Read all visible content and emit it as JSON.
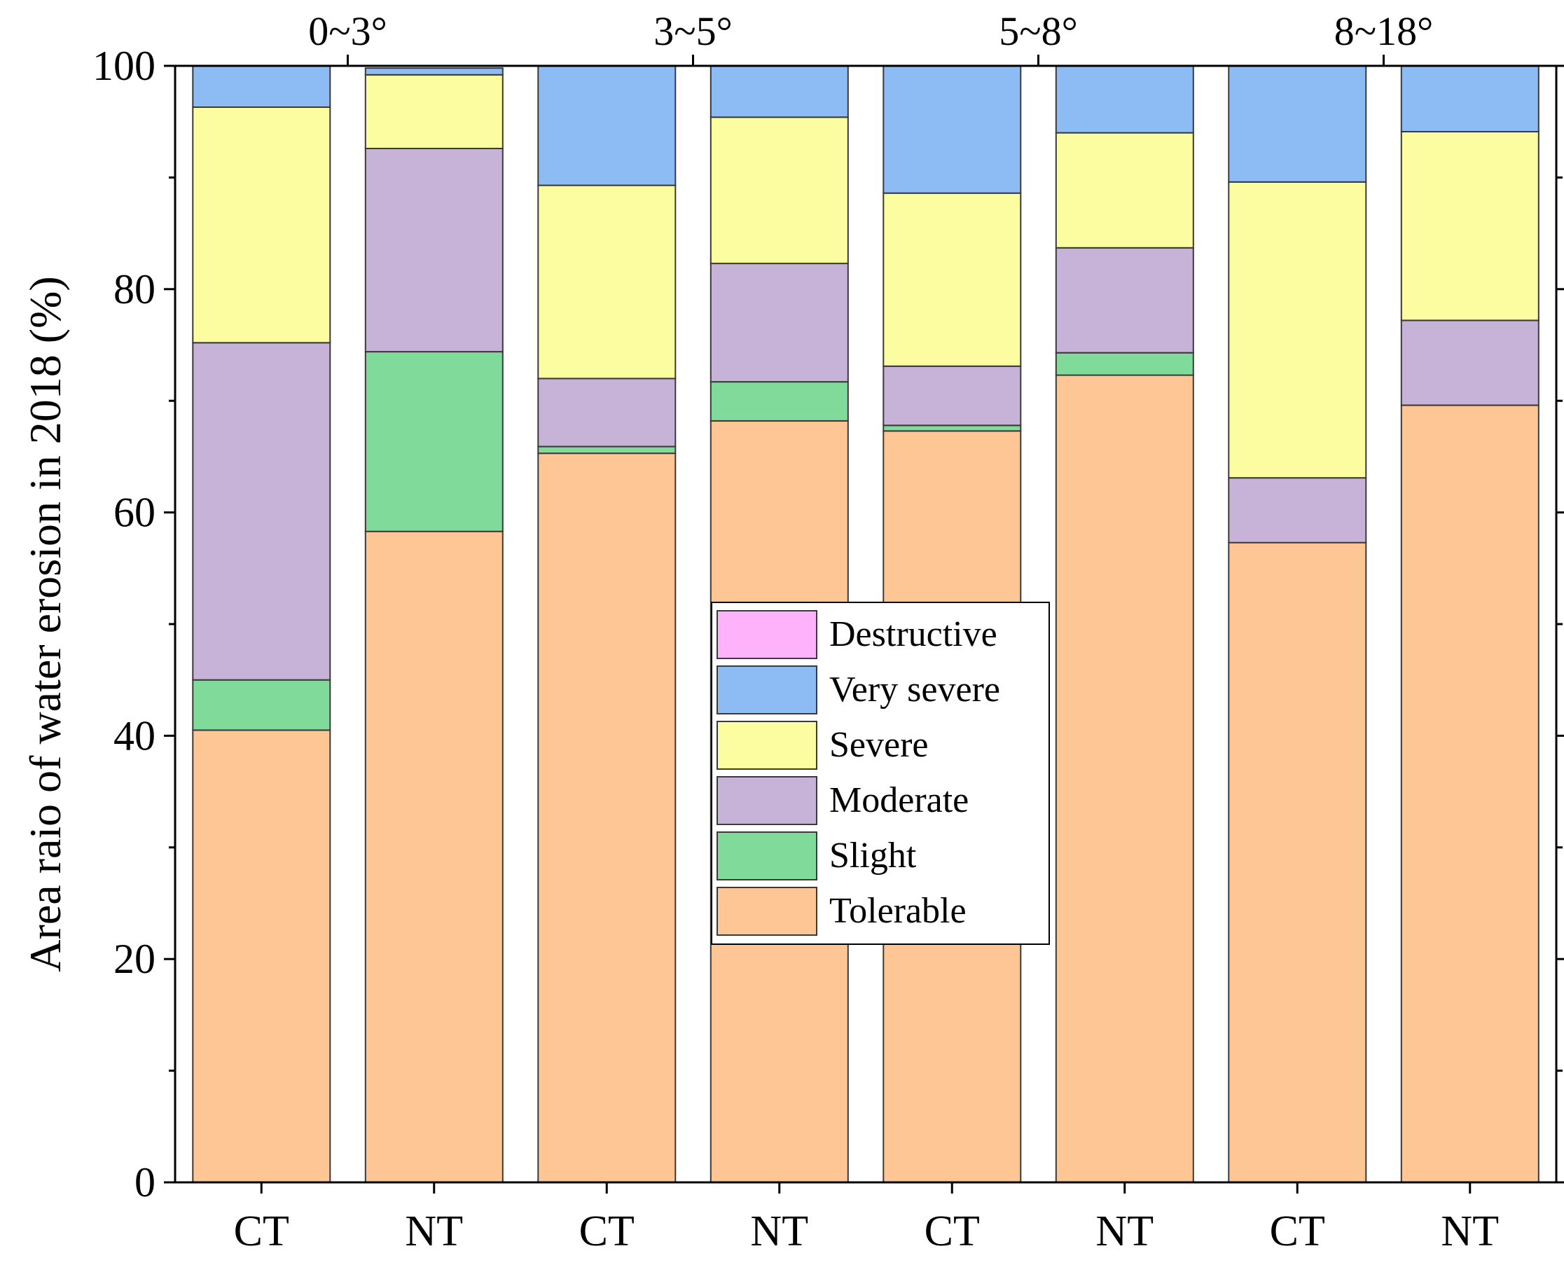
{
  "chart_data": {
    "type": "bar",
    "stacked": true,
    "title": "",
    "xlabel": "",
    "ylabel": "Area raio of water erosion in 2018 (%)",
    "ylim": [
      0,
      100
    ],
    "yticks": [
      0,
      20,
      40,
      60,
      80,
      100
    ],
    "categories": [
      "CT",
      "NT",
      "CT",
      "NT",
      "CT",
      "NT",
      "CT",
      "NT"
    ],
    "groups": [
      "0~3°",
      "3~5°",
      "5~8°",
      "8~18°"
    ],
    "legend_position": "center",
    "series": [
      {
        "name": "Tolerable",
        "color": "#FFC695",
        "values": [
          40.5,
          58.3,
          65.3,
          68.2,
          67.3,
          72.3,
          57.3,
          69.6
        ]
      },
      {
        "name": "Slight",
        "color": "#80DA9A",
        "values": [
          4.5,
          16.1,
          0.6,
          3.5,
          0.5,
          2.0,
          0.0,
          0.0
        ]
      },
      {
        "name": "Moderate",
        "color": "#C8B3D8",
        "values": [
          30.2,
          18.2,
          6.1,
          10.6,
          5.3,
          9.4,
          5.8,
          7.6
        ]
      },
      {
        "name": "Severe",
        "color": "#FBFDA0",
        "values": [
          21.1,
          6.6,
          17.3,
          13.1,
          15.5,
          10.3,
          26.5,
          16.9
        ]
      },
      {
        "name": "Very severe",
        "color": "#8DBBF4",
        "values": [
          3.7,
          0.6,
          10.7,
          4.6,
          11.4,
          6.0,
          10.4,
          5.9
        ]
      },
      {
        "name": "Destructive",
        "color": "#FDB2F9",
        "values": [
          0,
          0,
          0,
          0,
          0,
          0,
          0,
          0
        ]
      }
    ],
    "legend_order": [
      "Destructive",
      "Very severe",
      "Severe",
      "Moderate",
      "Slight",
      "Tolerable"
    ]
  }
}
